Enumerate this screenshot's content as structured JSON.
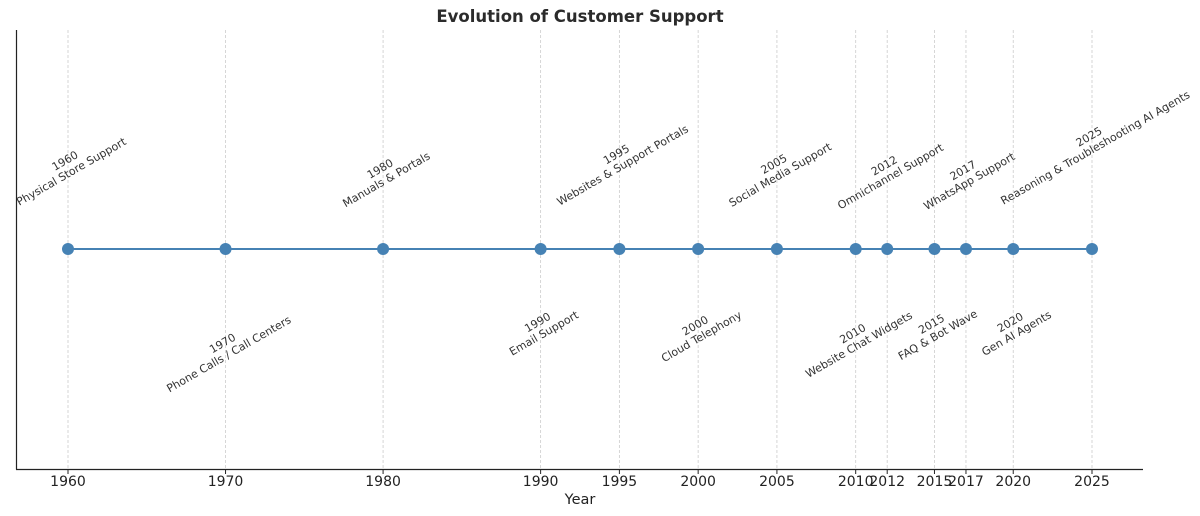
{
  "chart_data": {
    "type": "timeline",
    "title": "Evolution of Customer Support",
    "xlabel": "Year",
    "ylabel": "",
    "xlim": [
      1956.8,
      2028.3
    ],
    "grid": {
      "x": true,
      "y": false,
      "style": "dashed",
      "color": "#cccccc"
    },
    "line_color": "#4682b4",
    "marker_color": "#4682b4",
    "x_ticks": [
      1960,
      1970,
      1980,
      1990,
      1995,
      2000,
      2005,
      2010,
      2012,
      2015,
      2017,
      2020,
      2025
    ],
    "events": [
      {
        "year": 1960,
        "label": "Physical Store Support",
        "position": "above"
      },
      {
        "year": 1970,
        "label": "Phone Calls / Call Centers",
        "position": "below"
      },
      {
        "year": 1980,
        "label": "Manuals & Portals",
        "position": "above"
      },
      {
        "year": 1990,
        "label": "Email Support",
        "position": "below"
      },
      {
        "year": 1995,
        "label": "Websites & Support Portals",
        "position": "above"
      },
      {
        "year": 2000,
        "label": "Cloud Telephony",
        "position": "below"
      },
      {
        "year": 2005,
        "label": "Social Media Support",
        "position": "above"
      },
      {
        "year": 2010,
        "label": "Website Chat Widgets",
        "position": "below"
      },
      {
        "year": 2012,
        "label": "Omnichannel Support",
        "position": "above"
      },
      {
        "year": 2015,
        "label": "FAQ & Bot Wave",
        "position": "below"
      },
      {
        "year": 2017,
        "label": "WhatsApp Support",
        "position": "above"
      },
      {
        "year": 2020,
        "label": "Gen AI Agents",
        "position": "below"
      },
      {
        "year": 2025,
        "label": "Reasoning & Troubleshooting AI Agents",
        "position": "above"
      }
    ]
  }
}
